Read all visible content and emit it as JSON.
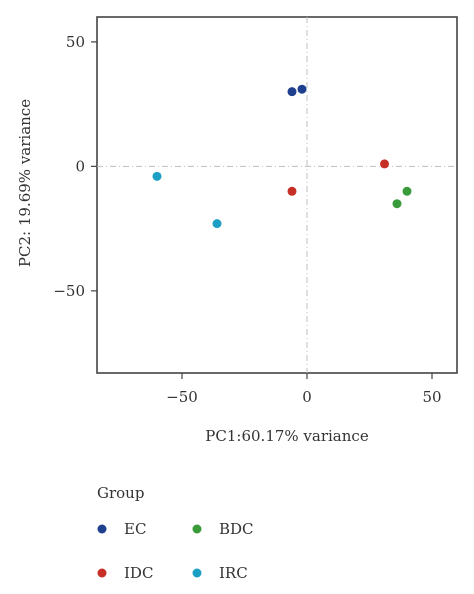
{
  "chart_data": {
    "type": "scatter",
    "xlabel": "PC1:60.17% variance",
    "ylabel": "PC2: 19.69% variance",
    "xlim": [
      -84,
      60
    ],
    "ylim": [
      -83,
      60
    ],
    "xticks": [
      -50,
      0,
      50
    ],
    "yticks": [
      50,
      0,
      -50
    ],
    "xtick_labels": [
      "−50",
      "0",
      "50"
    ],
    "ytick_labels": [
      "50",
      "0",
      "−50"
    ],
    "reference_lines": {
      "x": 0,
      "y": 0,
      "style": "dash-dot"
    },
    "grid": false,
    "legend": {
      "title": "Group",
      "placement": "bottom-left",
      "columns": 2,
      "order": [
        "EC",
        "BDC",
        "IDC",
        "IRC"
      ]
    },
    "series": [
      {
        "name": "EC",
        "color": "#1f3f8f",
        "points": [
          [
            -6,
            30
          ],
          [
            -2,
            31
          ]
        ]
      },
      {
        "name": "IDC",
        "color": "#c62e26",
        "points": [
          [
            -6,
            -10
          ],
          [
            31,
            1
          ]
        ]
      },
      {
        "name": "BDC",
        "color": "#3a9b3a",
        "points": [
          [
            40,
            -10
          ],
          [
            36,
            -15
          ]
        ]
      },
      {
        "name": "IRC",
        "color": "#1c9fc4",
        "points": [
          [
            -60,
            -4
          ],
          [
            -36,
            -23
          ]
        ]
      }
    ]
  }
}
